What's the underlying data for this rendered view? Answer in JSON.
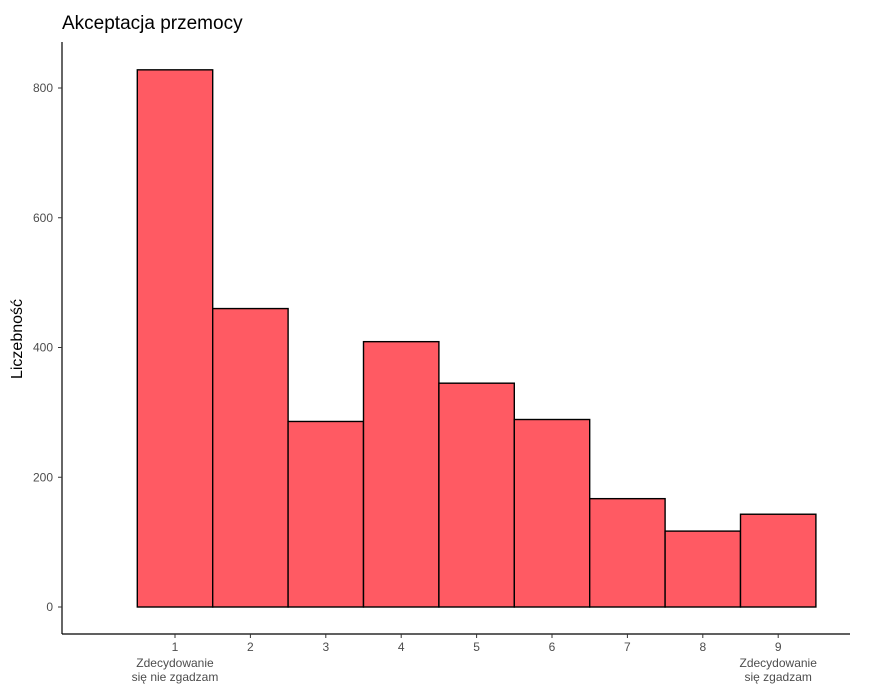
{
  "chart_data": {
    "type": "bar",
    "title": "Akceptacja przemocy",
    "xlabel": "",
    "ylabel": "Liczebność",
    "categories": [
      "1",
      "2",
      "3",
      "4",
      "5",
      "6",
      "7",
      "8",
      "9"
    ],
    "values": [
      828,
      460,
      286,
      409,
      345,
      289,
      167,
      117,
      143
    ],
    "category_sublabels": {
      "1": [
        "Zdecydowanie",
        "się nie zgadzam"
      ],
      "9": [
        "Zdecydowanie",
        "się zgadzam"
      ]
    },
    "ylim": [
      0,
      830
    ],
    "yticks": [
      0,
      200,
      400,
      600,
      800
    ],
    "bar_fill": "#ff5a63",
    "bar_stroke": "#000000",
    "grid": false,
    "legend": "none"
  }
}
